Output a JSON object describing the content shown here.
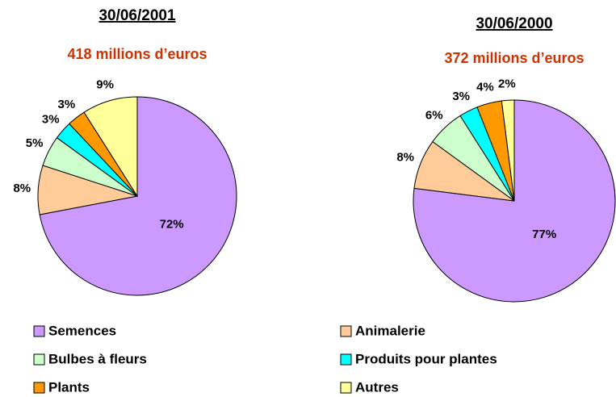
{
  "legend": {
    "labels": [
      "Semences",
      "Animalerie",
      "Bulbes à fleurs",
      "Produits pour plantes",
      "Plants",
      "Autres"
    ],
    "colors": [
      "#cc99ff",
      "#ffcc99",
      "#ccffcc",
      "#00ffff",
      "#ff9900",
      "#ffff99"
    ]
  },
  "chart_data": [
    {
      "type": "pie",
      "title": "30/06/2001",
      "subtitle": "418 millions d’euros",
      "values": [
        72,
        8,
        5,
        3,
        3,
        9
      ],
      "value_labels": [
        "72%",
        "8%",
        "5%",
        "3%",
        "3%",
        "9%"
      ]
    },
    {
      "type": "pie",
      "title": "30/06/2000",
      "subtitle": "372 millions d’euros",
      "values": [
        77,
        8,
        6,
        3,
        4,
        2
      ],
      "value_labels": [
        "77%",
        "8%",
        "6%",
        "3%",
        "4%",
        "2%"
      ]
    }
  ]
}
